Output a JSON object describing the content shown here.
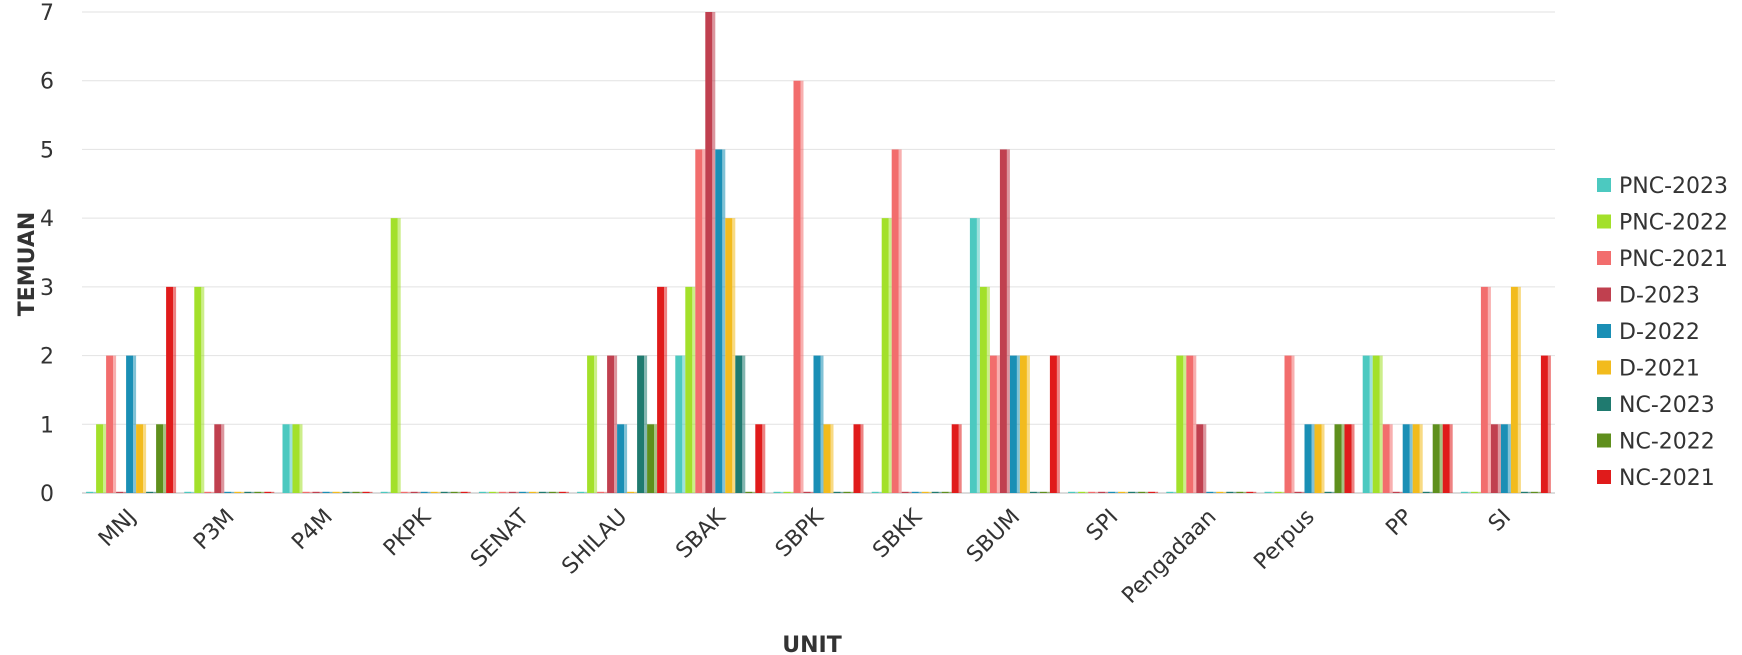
{
  "chart_data": {
    "type": "bar",
    "title": "",
    "xlabel": "UNIT",
    "ylabel": "TEMUAN",
    "ylim": [
      0,
      7
    ],
    "yticks": [
      0,
      1,
      2,
      3,
      4,
      5,
      6,
      7
    ],
    "grid": true,
    "legend_position": "right",
    "categories": [
      "MNJ",
      "P3M",
      "P4M",
      "PKPK",
      "SENAT",
      "SHILAU",
      "SBAK",
      "SBPK",
      "SBKK",
      "SBUM",
      "SPI",
      "Pengadaan",
      "Perpus",
      "PP",
      "SI"
    ],
    "series": [
      {
        "name": "PNC-2023",
        "color": "#4cc9c0",
        "values": [
          0,
          0,
          1,
          0,
          0,
          0,
          2,
          0,
          0,
          4,
          0,
          0,
          0,
          2,
          0
        ]
      },
      {
        "name": "PNC-2022",
        "color": "#a3e02a",
        "values": [
          1,
          3,
          1,
          4,
          0,
          2,
          3,
          0,
          4,
          3,
          0,
          2,
          0,
          2,
          0
        ]
      },
      {
        "name": "PNC-2021",
        "color": "#f26d6d",
        "values": [
          2,
          0,
          0,
          0,
          0,
          0,
          5,
          6,
          5,
          2,
          0,
          2,
          2,
          1,
          3
        ]
      },
      {
        "name": "D-2023",
        "color": "#c0404f",
        "values": [
          0,
          1,
          0,
          0,
          0,
          2,
          7,
          0,
          0,
          5,
          0,
          1,
          0,
          0,
          1
        ]
      },
      {
        "name": "D-2022",
        "color": "#1a8fb5",
        "values": [
          2,
          0,
          0,
          0,
          0,
          1,
          5,
          2,
          0,
          2,
          0,
          0,
          1,
          1,
          1
        ]
      },
      {
        "name": "D-2021",
        "color": "#f2bb1d",
        "values": [
          1,
          0,
          0,
          0,
          0,
          0,
          4,
          1,
          0,
          2,
          0,
          0,
          1,
          1,
          3
        ]
      },
      {
        "name": "NC-2023",
        "color": "#1f7a6f",
        "values": [
          0,
          0,
          0,
          0,
          0,
          2,
          2,
          0,
          0,
          0,
          0,
          0,
          0,
          0,
          0
        ]
      },
      {
        "name": "NC-2022",
        "color": "#5f8f1d",
        "values": [
          1,
          0,
          0,
          0,
          0,
          1,
          0,
          0,
          0,
          0,
          0,
          0,
          1,
          1,
          0
        ]
      },
      {
        "name": "NC-2021",
        "color": "#e01b1b",
        "values": [
          3,
          0,
          0,
          0,
          0,
          3,
          1,
          1,
          1,
          2,
          0,
          0,
          1,
          1,
          2
        ]
      }
    ]
  }
}
